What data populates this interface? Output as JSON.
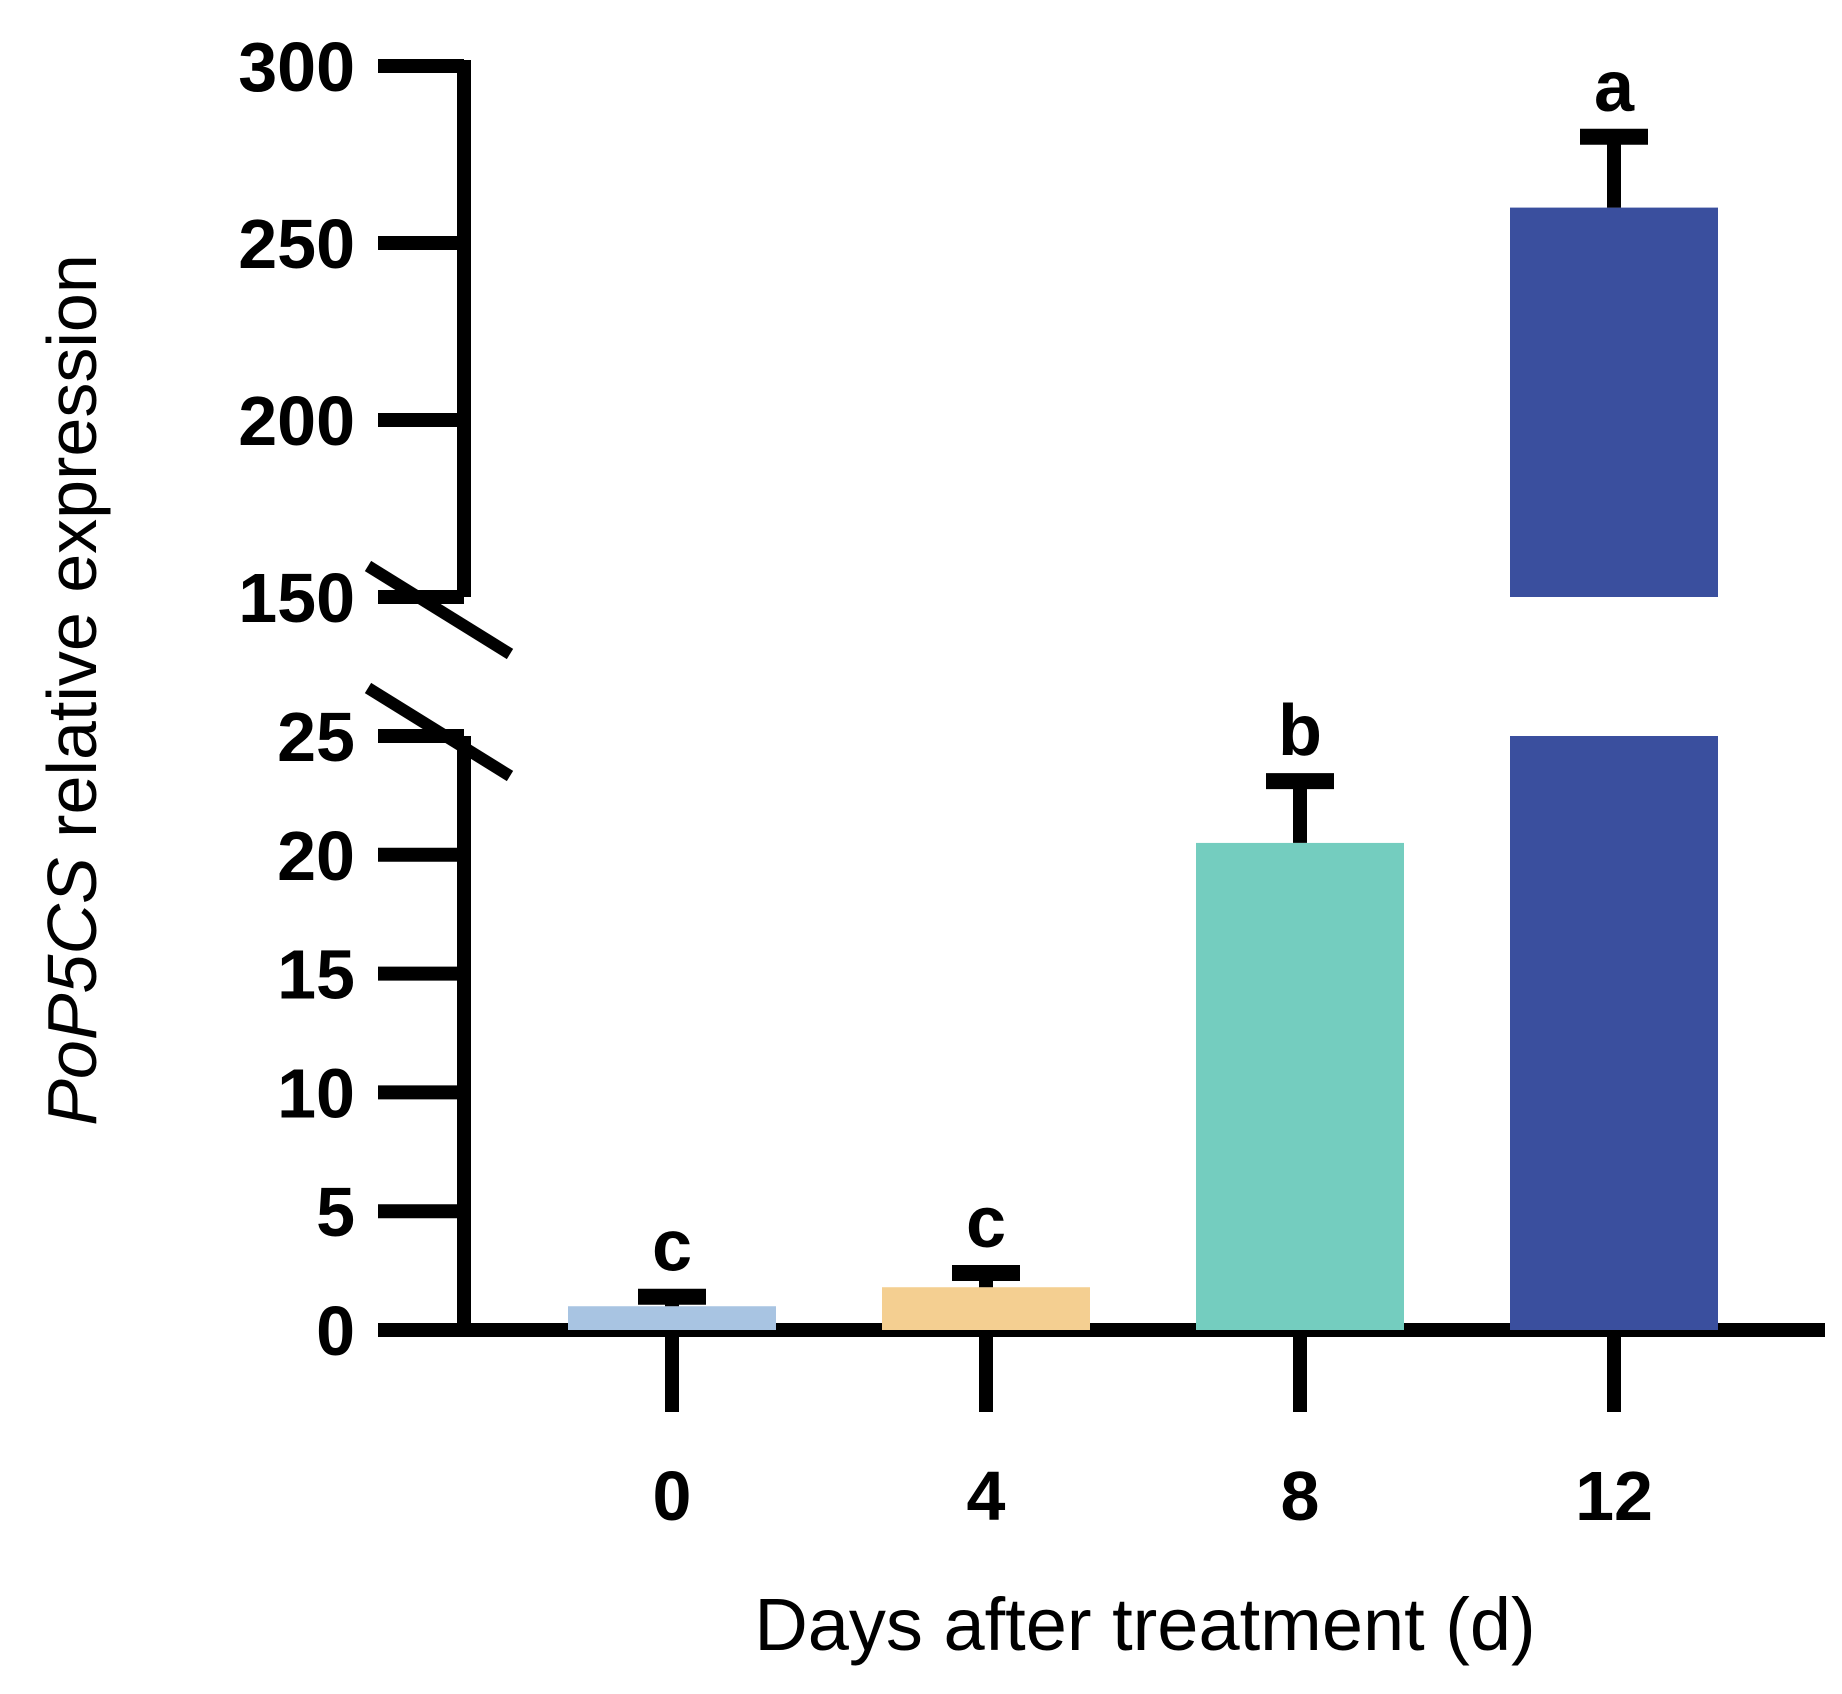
{
  "chart_data": {
    "type": "bar",
    "title": "",
    "xlabel": "Days after treatment (d)",
    "ylabel_italic": "PoP5CS",
    "ylabel_rest": " relative expression",
    "categories": [
      "0",
      "4",
      "8",
      "12"
    ],
    "values": [
      1.0,
      1.8,
      20.5,
      260
    ],
    "errors": [
      0.4,
      0.6,
      2.6,
      20
    ],
    "significance": [
      "c",
      "c",
      "b",
      "a"
    ],
    "colors": [
      "#a8c4e2",
      "#f4cf91",
      "#74cdbf",
      "#3a4f9e"
    ],
    "axis_break": {
      "lower": [
        0,
        25
      ],
      "upper": [
        150,
        300
      ]
    },
    "yticks_lower": [
      0,
      5,
      10,
      15,
      20,
      25
    ],
    "yticks_upper": [
      150,
      200,
      250,
      300
    ],
    "ytick_labels_lower": [
      "0",
      "5",
      "10",
      "15",
      "20",
      "25"
    ],
    "ytick_labels_upper": [
      "150",
      "200",
      "250",
      "300"
    ],
    "axis_color": "#000000"
  }
}
